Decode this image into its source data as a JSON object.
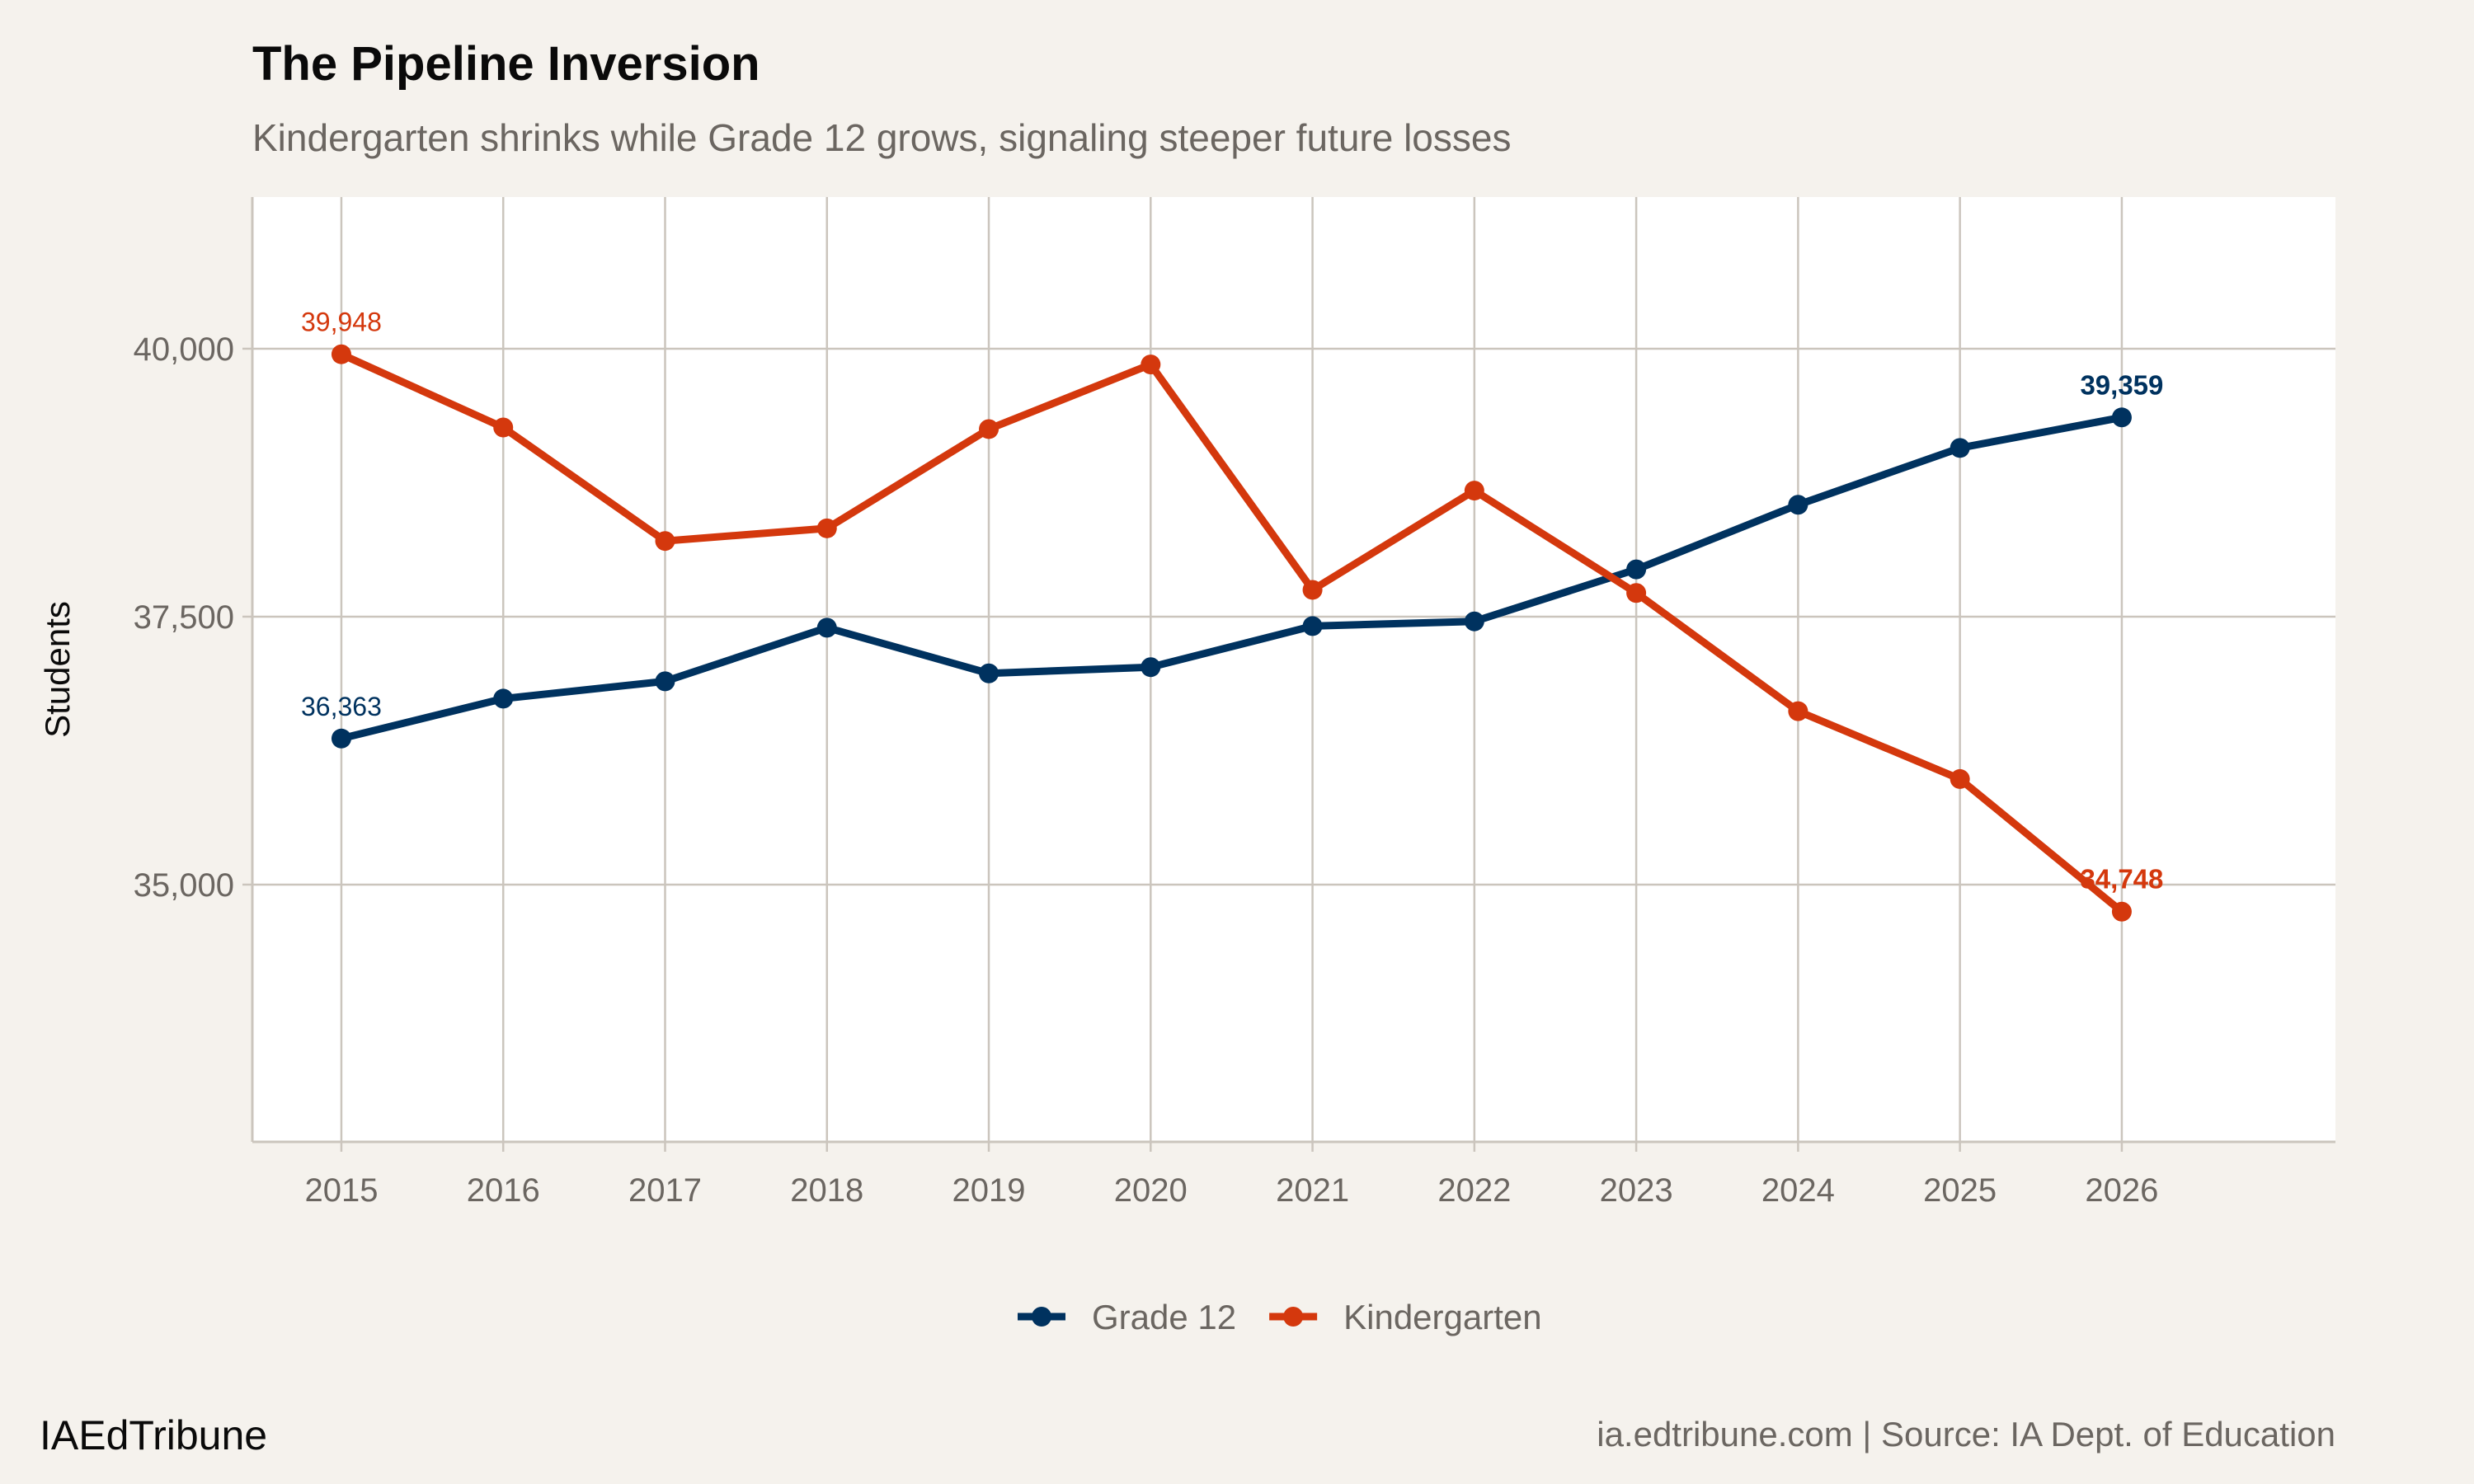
{
  "header": {
    "title": "The Pipeline Inversion",
    "subtitle": "Kindergarten shrinks while Grade 12 grows, signaling steeper future losses"
  },
  "footer": {
    "brand": "IAEdTribune",
    "caption": "ia.edtribune.com | Source: IA Dept. of Education"
  },
  "chart_data": {
    "type": "line",
    "title": "The Pipeline Inversion",
    "subtitle": "Kindergarten shrinks while Grade 12 grows, signaling steeper future losses",
    "xlabel": "",
    "ylabel": "Students",
    "x": [
      2015,
      2016,
      2017,
      2018,
      2019,
      2020,
      2021,
      2022,
      2023,
      2024,
      2025,
      2026
    ],
    "xticks": [
      "2015",
      "2016",
      "2017",
      "2018",
      "2019",
      "2020",
      "2021",
      "2022",
      "2023",
      "2024",
      "2025",
      "2026"
    ],
    "yticks": [
      35000,
      37500,
      40000
    ],
    "ytick_labels": [
      "35,000",
      "37,500",
      "40,000"
    ],
    "xlim": [
      2014.45,
      2027.32
    ],
    "ylim": [
      32600,
      41415
    ],
    "grid": true,
    "legend_position": "bottom",
    "series": [
      {
        "name": "Grade 12",
        "color": "#00325f",
        "values": [
          36363,
          36735,
          36897,
          37397,
          36971,
          37029,
          37412,
          37456,
          37941,
          38544,
          39074,
          39359
        ],
        "labels": [
          {
            "index": 0,
            "text": "36,363",
            "bold": false
          },
          {
            "index": 11,
            "text": "39,359",
            "bold": true
          }
        ]
      },
      {
        "name": "Kindergarten",
        "color": "#d4380d",
        "values": [
          39948,
          39265,
          38206,
          38324,
          39250,
          39853,
          37750,
          38676,
          37721,
          36618,
          35985,
          34748
        ],
        "labels": [
          {
            "index": 0,
            "text": "39,948",
            "bold": false
          },
          {
            "index": 11,
            "text": "34,748",
            "bold": true
          }
        ]
      }
    ]
  }
}
